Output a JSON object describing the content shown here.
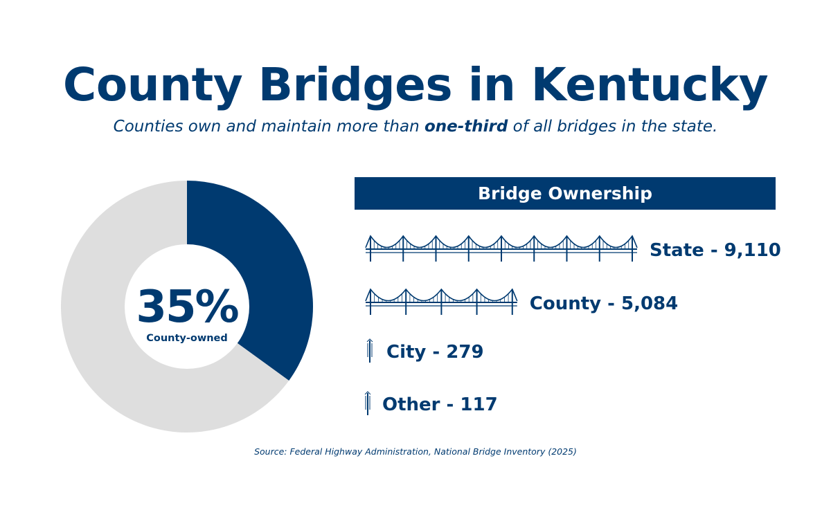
{
  "header": {
    "title": "County Bridges in Kentucky",
    "subtitle_before": "Counties own and maintain more than ",
    "subtitle_emphasis": "one-third",
    "subtitle_after": " of all bridges in the state."
  },
  "donut": {
    "center_value": "35%",
    "center_label": "County-owned"
  },
  "section": {
    "title": "Bridge Ownership"
  },
  "source": "Source: Federal Highway Administration, National Bridge Inventory (2025)",
  "colors": {
    "primary": "#003a70",
    "remainder": "#dedede",
    "background": "#ffffff"
  },
  "chart_data": [
    {
      "type": "pie",
      "style": "donut",
      "slices": [
        {
          "label": "County-owned",
          "value": 35,
          "color": "#003a70"
        },
        {
          "label": "",
          "value": 65,
          "color": "#dedede"
        }
      ],
      "start_angle": "top",
      "direction": "clockwise"
    },
    {
      "type": "bar",
      "orientation": "horizontal",
      "style": "pictograph",
      "title": "Bridge Ownership",
      "categories": [
        "State",
        "County",
        "City",
        "Other"
      ],
      "values": [
        9110,
        5084,
        279,
        117
      ],
      "labels": [
        "State - 9,110",
        "County - 5,084",
        "City - 279",
        "Other - 117"
      ]
    }
  ]
}
